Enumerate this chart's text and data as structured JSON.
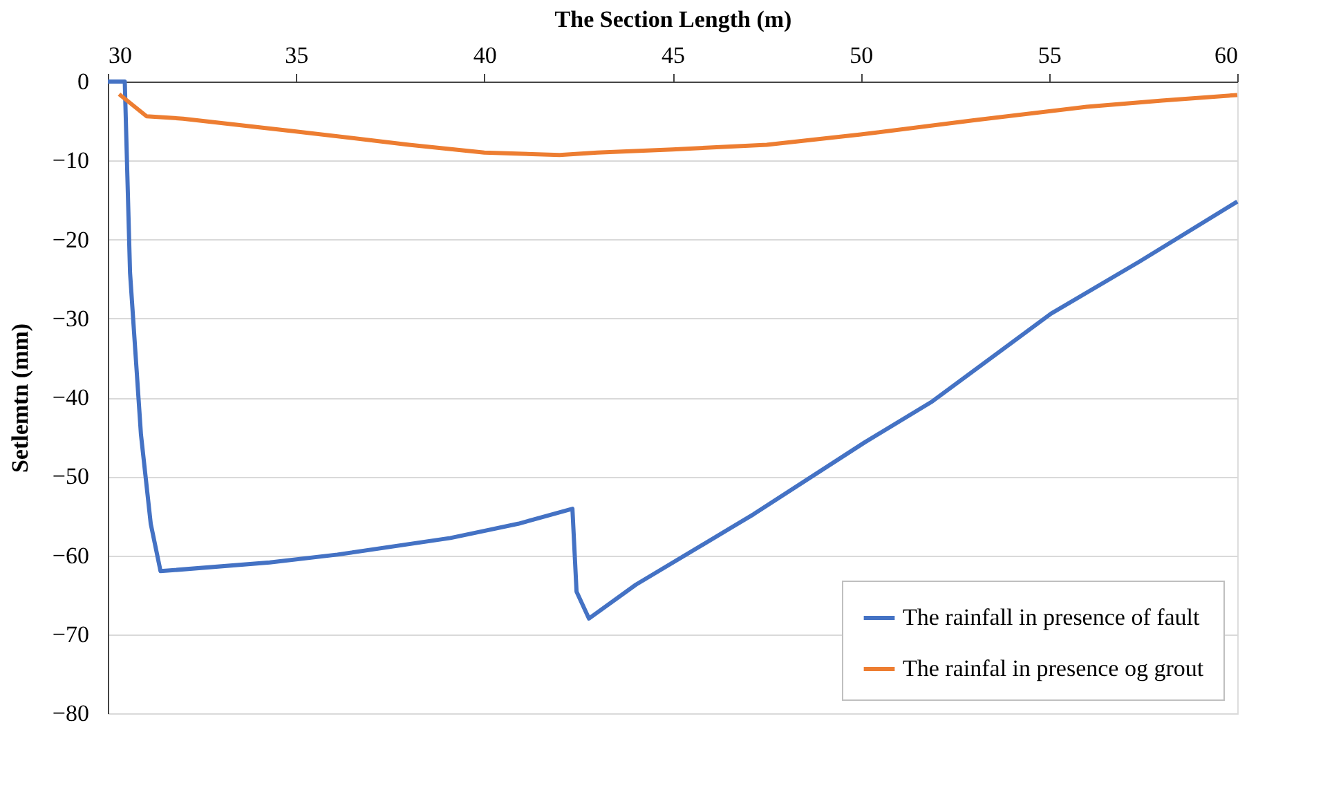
{
  "chart_data": {
    "type": "line",
    "xlabel": "The Section Length (m)",
    "ylabel": "Setlemtn (mm)",
    "xlim": [
      30,
      60
    ],
    "xticks": [
      30,
      35,
      40,
      45,
      50,
      55,
      60
    ],
    "ylim": [
      -80,
      0
    ],
    "yticks": [
      -80,
      -70,
      -60,
      -50,
      -40,
      -30,
      -20,
      -10,
      0
    ],
    "grid": "y",
    "legend": "bottom right",
    "line_style": "solid",
    "marker": "none",
    "series": [
      {
        "name": "The rainfall in presence of fault",
        "color": "#4472c4",
        "x": [
          30.0,
          30.45,
          30.59,
          30.88,
          31.14,
          31.4,
          34.3,
          36.1,
          39.1,
          40.9,
          42.34,
          42.45,
          42.78,
          44.03,
          47.15,
          50.1,
          51.9,
          55.05,
          57.4,
          60
        ],
        "values": [
          0,
          0,
          -24.2,
          -44.7,
          -56,
          -62,
          -60.9,
          -59.9,
          -57.8,
          -56,
          -54.1,
          -64.6,
          -68,
          -63.7,
          -54.8,
          -45.7,
          -40.5,
          -29.4,
          -22.8,
          -15.2
        ]
      },
      {
        "name": "The rainfal in presence og grout",
        "color": "#ed7d31",
        "x": [
          30.3,
          31.03,
          32,
          34.96,
          38,
          40,
          42,
          43,
          45,
          47.5,
          50,
          53,
          56,
          58,
          60
        ],
        "values": [
          -1.6,
          -4.4,
          -4.7,
          -6.3,
          -8,
          -9,
          -9.3,
          -9,
          -8.6,
          -8,
          -6.7,
          -4.9,
          -3.2,
          -2.4,
          -1.7
        ]
      }
    ]
  }
}
